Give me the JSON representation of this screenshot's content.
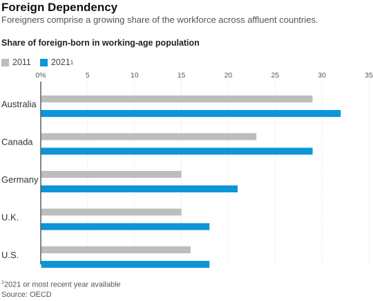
{
  "header": {
    "title": "Foreign Dependency",
    "subtitle": "Foreigners comprise a growing share of the workforce across affluent countries."
  },
  "footer": {
    "footnote_mark": "1",
    "footnote": "2021 or most recent year available",
    "source": "Source: OECD"
  },
  "colors": {
    "s2011": "#bdbdbd",
    "s2021": "#0d95d8",
    "axis": "#333333",
    "grid": "#dddddd"
  },
  "chart_data": {
    "type": "bar",
    "orientation": "horizontal",
    "title": "Share of foreign-born in working-age population",
    "categories": [
      "Australia",
      "Canada",
      "Germany",
      "U.K.",
      "U.S."
    ],
    "series": [
      {
        "name": "2011",
        "values": [
          29,
          23,
          15,
          15,
          16
        ]
      },
      {
        "name": "2021",
        "name_sup": "1",
        "values": [
          32,
          29,
          21,
          18,
          18
        ]
      }
    ],
    "x_ticks": [
      "0%",
      "5",
      "10",
      "15",
      "20",
      "25",
      "30",
      "35"
    ],
    "xlim": [
      0,
      35
    ],
    "grid": true,
    "legend_position": "top-left"
  }
}
